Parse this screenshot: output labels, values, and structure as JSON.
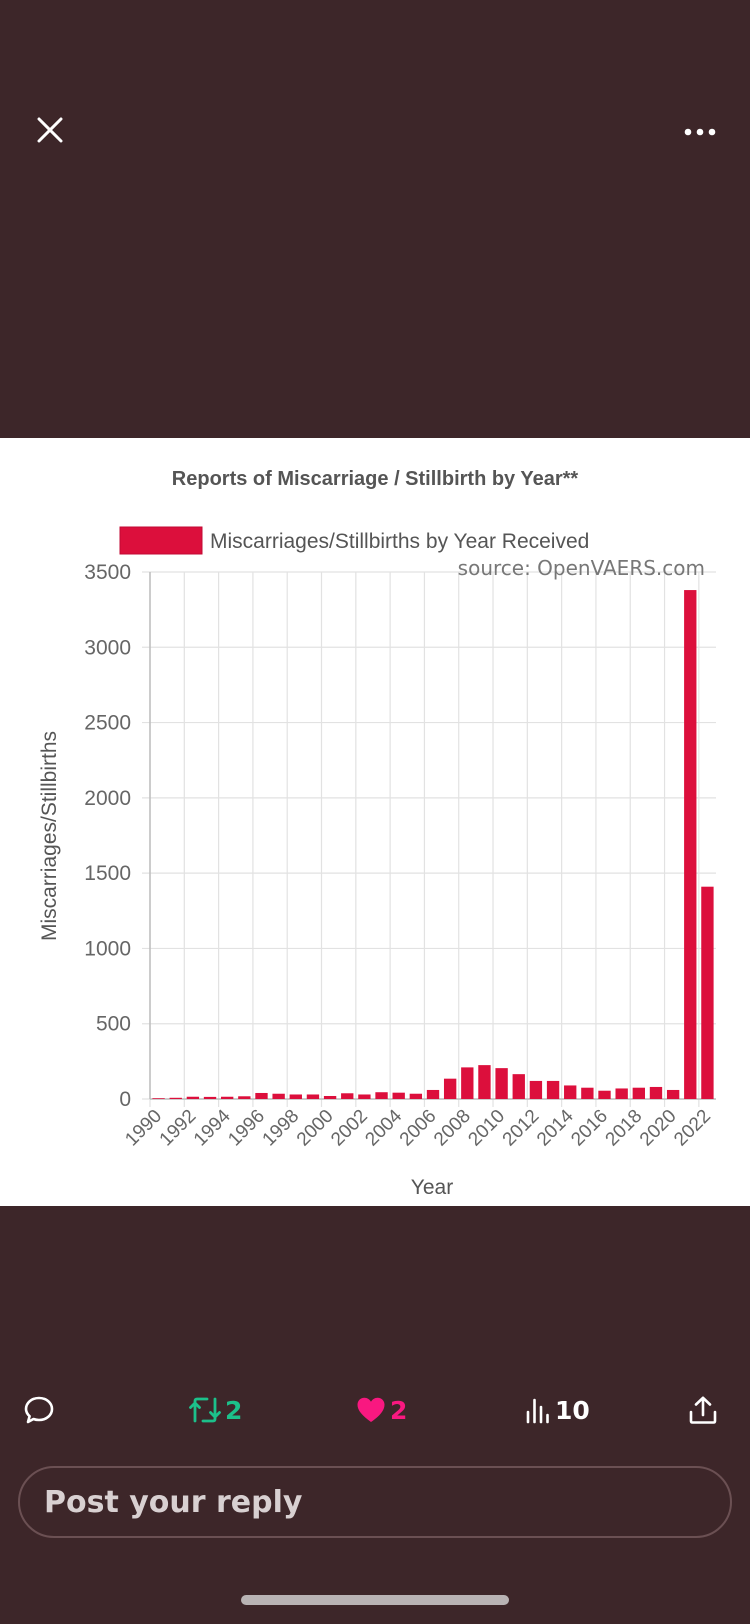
{
  "top_bar": {
    "close_icon": "close-icon",
    "more_icon": "more-horizontal-icon"
  },
  "chart_data": {
    "type": "bar",
    "title": "Reports of Miscarriage / Stillbirth by Year**",
    "legend_label": "Miscarriages/Stillbirths by Year Received",
    "watermark": "source: OpenVAERS.com",
    "xlabel": "Year",
    "ylabel": "Miscarriages/Stillbirths",
    "ylim": [
      0,
      3500
    ],
    "yticks": [
      0,
      500,
      1000,
      1500,
      2000,
      2500,
      3000,
      3500
    ],
    "xtick_labels": [
      "1990",
      "1992",
      "1994",
      "1996",
      "1998",
      "2000",
      "2002",
      "2004",
      "2006",
      "2008",
      "2010",
      "2012",
      "2014",
      "2016",
      "2018",
      "2020",
      "2022"
    ],
    "categories": [
      "1990",
      "1991",
      "1992",
      "1993",
      "1994",
      "1995",
      "1996",
      "1997",
      "1998",
      "1999",
      "2000",
      "2001",
      "2002",
      "2003",
      "2004",
      "2005",
      "2006",
      "2007",
      "2008",
      "2009",
      "2010",
      "2011",
      "2012",
      "2013",
      "2014",
      "2015",
      "2016",
      "2017",
      "2018",
      "2019",
      "2020",
      "2021",
      "2022"
    ],
    "values": [
      5,
      8,
      15,
      14,
      15,
      18,
      40,
      35,
      30,
      30,
      20,
      38,
      30,
      45,
      42,
      35,
      60,
      135,
      210,
      225,
      205,
      165,
      120,
      120,
      90,
      75,
      55,
      70,
      75,
      80,
      60,
      3380,
      1410
    ],
    "bar_color": "#dc0f3c",
    "grid": true
  },
  "actions": {
    "reply_icon": "reply-icon",
    "retweet_count": "2",
    "like_count": "2",
    "views_count": "10",
    "share_icon": "share-icon",
    "retweet_color": "#1cc08a",
    "like_color": "#f91880"
  },
  "reply": {
    "placeholder": "Post your reply"
  }
}
